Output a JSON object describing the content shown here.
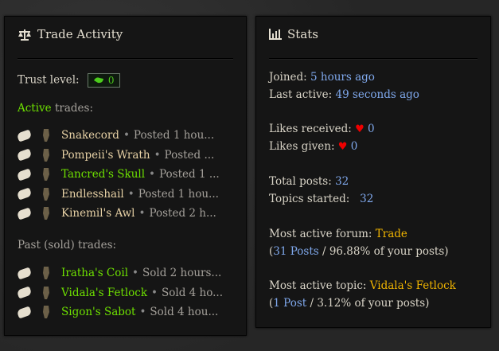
{
  "trade": {
    "title": "Trade Activity",
    "icon": "scales-icon",
    "trust_label": "Trust level:",
    "trust_value": "0",
    "active_word": "Active",
    "active_rest": " trades:",
    "active": [
      {
        "name": "Snakecord",
        "status": "Posted 1 hou...",
        "name_color": "#e8d2a6"
      },
      {
        "name": "Pompeii's Wrath",
        "status": "Posted ...",
        "name_color": "#e8d2a6"
      },
      {
        "name": "Tancred's Skull",
        "status": "Posted 1 ...",
        "name_color": "#6ee000"
      },
      {
        "name": "Endlesshail",
        "status": "Posted 1 hou...",
        "name_color": "#e8d2a6"
      },
      {
        "name": "Kinemil's Awl",
        "status": "Posted 2 h...",
        "name_color": "#e8d2a6"
      }
    ],
    "past_label": "Past (sold) trades:",
    "past": [
      {
        "name": "Iratha's Coil",
        "status": "Sold 2 hours...",
        "name_color": "#6ee000"
      },
      {
        "name": "Vidala's Fetlock",
        "status": "Sold 4 ho...",
        "name_color": "#6ee000"
      },
      {
        "name": "Sigon's Sabot",
        "status": "Sold 4 hou...",
        "name_color": "#6ee000"
      }
    ],
    "bullet": "•"
  },
  "stats": {
    "title": "Stats",
    "icon": "bar-chart-icon",
    "joined_label": "Joined:",
    "joined": "5 hours ago",
    "last_label": "Last active:",
    "last": "49 seconds ago",
    "likes_received_label": "Likes received:",
    "likes_received": "0",
    "likes_given_label": "Likes given:",
    "likes_given": "0",
    "total_posts_label": "Total posts:",
    "total_posts": "32",
    "topics_label": "Topics started:",
    "topics": "32",
    "forum_label": "Most active forum:",
    "forum": "Trade",
    "forum_posts": "31 Posts",
    "forum_pct": " / 96.88% of your posts)",
    "topic_label": "Most active topic:",
    "topic": "Vidala's Fetlock",
    "topic_posts": "1 Post",
    "topic_pct": " / 3.12% of your posts)",
    "open_paren": "(",
    "heart": "♥"
  },
  "colors": {
    "green": "#6ee000",
    "link": "#7fa8ec",
    "gold": "#f0b400",
    "heart": "#e00000"
  }
}
